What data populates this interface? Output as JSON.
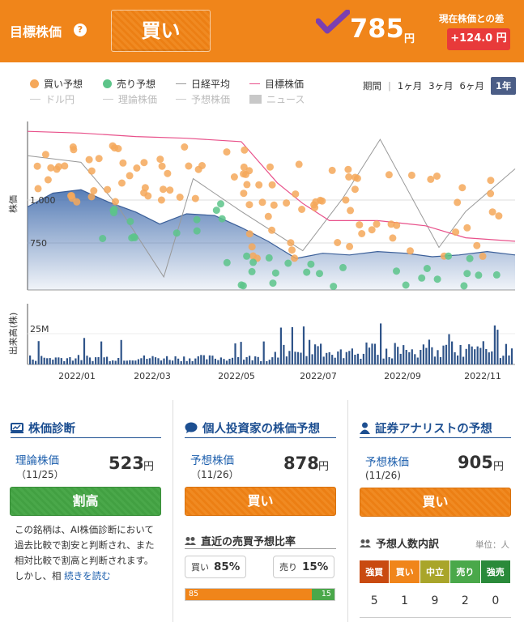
{
  "header": {
    "target_label": "目標株価",
    "help": "?",
    "rating": "買い",
    "price": "785",
    "yen": "円",
    "diff_label": "現在株価との差",
    "diff_value": "+124.0 円"
  },
  "legend": [
    {
      "label": "買い予想",
      "color": "#f5a85a",
      "kind": "dot",
      "active": true
    },
    {
      "label": "売り予想",
      "color": "#5cc489",
      "kind": "dot",
      "active": true
    },
    {
      "label": "日経平均",
      "color": "#999999",
      "kind": "line",
      "active": true
    },
    {
      "label": "目標株価",
      "color": "#e8508a",
      "kind": "line",
      "active": true
    },
    {
      "label": "ドル円",
      "color": "#cccccc",
      "kind": "line",
      "active": false
    },
    {
      "label": "理論株価",
      "color": "#cccccc",
      "kind": "line",
      "active": false
    },
    {
      "label": "予想株価",
      "color": "#cccccc",
      "kind": "line",
      "active": false
    },
    {
      "label": "ニュース",
      "color": "#c8c8c8",
      "kind": "box",
      "active": false
    }
  ],
  "period": {
    "label": "期間",
    "options": [
      "1ヶ月",
      "3ヶ月",
      "6ヶ月",
      "1年"
    ],
    "selected": "1年"
  },
  "chart_data": {
    "type": "line",
    "ylabel": "株価",
    "yticks": [
      "1,000",
      "750"
    ],
    "volume_label": "出来高(株)",
    "volume_tick": "25M",
    "xticks": [
      "2022/01",
      "2022/03",
      "2022/05",
      "2022/07",
      "2022/09",
      "2022/11"
    ],
    "series": [
      {
        "name": "株価",
        "color": "#4f77b3",
        "x": [
          "2021/11/26",
          "2021/12/15",
          "2022/01/05",
          "2022/01/25",
          "2022/02/15",
          "2022/03/05",
          "2022/03/25",
          "2022/04/15",
          "2022/05/05",
          "2022/05/25",
          "2022/06/15",
          "2022/07/05",
          "2022/07/25",
          "2022/08/15",
          "2022/09/05",
          "2022/09/25",
          "2022/10/15",
          "2022/11/05",
          "2022/11/26"
        ],
        "values": [
          960,
          1040,
          1060,
          990,
          930,
          860,
          920,
          910,
          840,
          760,
          660,
          690,
          680,
          700,
          690,
          670,
          680,
          700,
          680
        ]
      },
      {
        "name": "目標株価",
        "color": "#e8508a",
        "x": [
          "2021/11/26",
          "2022/01/05",
          "2022/02/15",
          "2022/03/25",
          "2022/05/05",
          "2022/06/01",
          "2022/06/20",
          "2022/07/10",
          "2022/08/15",
          "2022/09/20",
          "2022/10/20",
          "2022/11/26"
        ],
        "values": [
          1400,
          1390,
          1370,
          1360,
          1340,
          1100,
          980,
          880,
          880,
          850,
          780,
          760
        ]
      },
      {
        "name": "日経平均",
        "color": "#999999",
        "x": [
          "2021/11/26",
          "2022/01/05",
          "2022/02/01",
          "2022/03/08",
          "2022/03/30",
          "2022/05/05",
          "2022/06/20",
          "2022/07/20",
          "2022/08/17",
          "2022/09/30",
          "2022/10/20",
          "2022/11/26"
        ],
        "values": [
          28700,
          28500,
          27200,
          25000,
          28000,
          27000,
          25800,
          27400,
          29200,
          25900,
          27000,
          28300
        ]
      }
    ]
  },
  "panels": {
    "diagnosis": {
      "title": "株価診断",
      "label": "理論株価",
      "date": "（11/25）",
      "value": "523",
      "yen": "円",
      "button": "割高",
      "desc": "この銘柄は、AI株価診断において過去比較で割安と判断され、また相対比較で割高と判断されます。しかし、相",
      "more": "続きを読む"
    },
    "individual": {
      "title": "個人投資家の株価予想",
      "label": "予想株価",
      "date": "（11/26）",
      "value": "878",
      "yen": "円",
      "button": "買い",
      "ratio_title": "直近の売買予想比率",
      "buy_label": "買い",
      "buy_pct": "85%",
      "sell_label": "売り",
      "sell_pct": "15%",
      "buy_value": 85,
      "sell_value": 15,
      "buy_bar_text": "85",
      "sell_bar_text": "15"
    },
    "analyst": {
      "title": "証券アナリストの予想",
      "label": "予想株価",
      "date": "(11/26)",
      "value": "905",
      "yen": "円",
      "button": "買い",
      "count_title": "予想人数内訳",
      "unit": "単位：人",
      "headers": [
        "強買",
        "買い",
        "中立",
        "売り",
        "強売"
      ],
      "header_colors": [
        "#c94a10",
        "#f0851a",
        "#a9a52a",
        "#4aa84a",
        "#2a8a3a"
      ],
      "counts": [
        "5",
        "1",
        "9",
        "2",
        "0"
      ]
    }
  }
}
